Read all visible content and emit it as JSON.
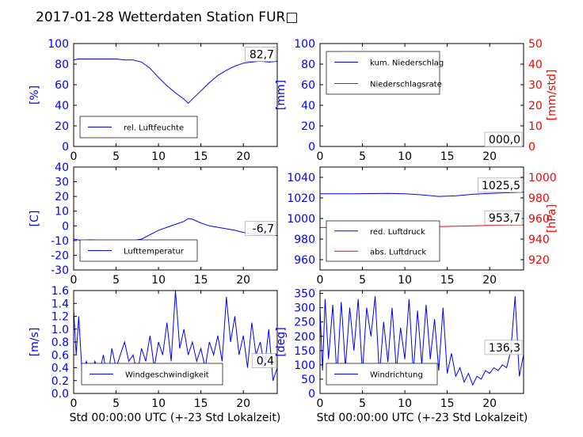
{
  "figure": {
    "title": "2017-01-28 Wetterdaten Station FUR□",
    "x_label": "Std 00:00:00 UTC (+-23 Std Lokalzeit)"
  },
  "colors": {
    "left": "#0000ff",
    "right": "#ff0000",
    "black": "#000000"
  },
  "chart_data": [
    {
      "type": "line",
      "name": "humidity",
      "xlim": [
        0,
        24
      ],
      "x_ticks": [
        0,
        5,
        10,
        15,
        20
      ],
      "ylim": [
        0,
        100
      ],
      "y_ticks": [
        0,
        20,
        40,
        60,
        80,
        100
      ],
      "ylabel": "[%]",
      "end_value": "82,7",
      "legend": {
        "position": "lower-left",
        "entries": [
          "rel. Luftfeuchte"
        ]
      },
      "series": [
        {
          "name": "rel. Luftfeuchte",
          "color": "#0000ff",
          "points": [
            [
              0,
              84
            ],
            [
              0.5,
              85
            ],
            [
              1,
              85
            ],
            [
              2,
              85
            ],
            [
              3,
              85
            ],
            [
              4,
              85
            ],
            [
              5,
              85
            ],
            [
              6,
              84
            ],
            [
              7,
              84
            ],
            [
              8,
              82
            ],
            [
              9,
              76
            ],
            [
              10,
              67
            ],
            [
              11,
              59
            ],
            [
              12,
              52
            ],
            [
              13,
              46
            ],
            [
              13.5,
              42
            ],
            [
              14,
              46
            ],
            [
              15,
              54
            ],
            [
              16,
              62
            ],
            [
              17,
              69
            ],
            [
              18,
              74
            ],
            [
              19,
              78
            ],
            [
              20,
              81
            ],
            [
              21,
              82
            ],
            [
              22,
              83
            ],
            [
              23,
              82
            ],
            [
              24,
              82.7
            ]
          ]
        }
      ]
    },
    {
      "type": "line",
      "name": "precipitation",
      "xlim": [
        0,
        24
      ],
      "x_ticks": [
        0,
        5,
        10,
        15,
        20
      ],
      "ylim": [
        0,
        100
      ],
      "y_ticks": [
        0,
        20,
        40,
        60,
        80,
        100
      ],
      "ylabel": "[mm]",
      "y2lim": [
        0,
        50
      ],
      "y2_ticks": [
        0,
        10,
        20,
        30,
        40,
        50
      ],
      "y2label": "[mm/std]",
      "end_value": "000,0",
      "legend": {
        "position": "upper-left",
        "entries": [
          "kum. Niederschlag",
          "Niederschlagsrate"
        ]
      },
      "series": [
        {
          "name": "kum. Niederschlag",
          "color": "#0000ff",
          "axis": "left",
          "points": [
            [
              0,
              0
            ],
            [
              24,
              0
            ]
          ]
        },
        {
          "name": "Niederschlagsrate",
          "color": "#ff0000",
          "axis": "right",
          "points": [
            [
              0,
              0
            ],
            [
              24,
              0
            ]
          ]
        }
      ]
    },
    {
      "type": "line",
      "name": "temperature",
      "xlim": [
        0,
        24
      ],
      "x_ticks": [
        0,
        5,
        10,
        15,
        20
      ],
      "ylim": [
        -30,
        40
      ],
      "y_ticks": [
        -30,
        -20,
        -10,
        0,
        10,
        20,
        30,
        40
      ],
      "ylabel": "[C]",
      "end_value": "-6,7",
      "legend": {
        "position": "lower-left",
        "entries": [
          "Lufttemperatur"
        ]
      },
      "series": [
        {
          "name": "Lufttemperatur",
          "color": "#0000ff",
          "points": [
            [
              0,
              -9
            ],
            [
              1,
              -10
            ],
            [
              2,
              -9.5
            ],
            [
              3,
              -10
            ],
            [
              4,
              -10.5
            ],
            [
              5,
              -10.5
            ],
            [
              6,
              -11
            ],
            [
              7,
              -10
            ],
            [
              8,
              -9
            ],
            [
              9,
              -6
            ],
            [
              10,
              -3
            ],
            [
              11,
              -1
            ],
            [
              12,
              1
            ],
            [
              13,
              3
            ],
            [
              13.5,
              5
            ],
            [
              14,
              4.5
            ],
            [
              15,
              2
            ],
            [
              16,
              0
            ],
            [
              17,
              -1
            ],
            [
              18,
              -2
            ],
            [
              19,
              -3
            ],
            [
              20,
              -4.5
            ],
            [
              21,
              -5.5
            ],
            [
              22,
              -6
            ],
            [
              23,
              -6
            ],
            [
              24,
              -6.7
            ]
          ]
        }
      ]
    },
    {
      "type": "line",
      "name": "pressure",
      "xlim": [
        0,
        24
      ],
      "x_ticks": [
        0,
        5,
        10,
        15,
        20
      ],
      "ylim": [
        950,
        1050
      ],
      "y_ticks": [
        960,
        980,
        1000,
        1020,
        1040
      ],
      "y2lim": [
        910,
        1010
      ],
      "y2_ticks": [
        920,
        940,
        960,
        980,
        1000
      ],
      "y2label": "[hPa]",
      "end_values": [
        "1025,5",
        "953,7"
      ],
      "legend": {
        "position": "lower-left",
        "entries": [
          "red. Luftdruck",
          "abs. Luftdruck"
        ]
      },
      "series": [
        {
          "name": "red. Luftdruck",
          "color": "#0000ff",
          "axis": "left",
          "points": [
            [
              0,
              1024
            ],
            [
              4,
              1024
            ],
            [
              8,
              1024.5
            ],
            [
              10,
              1024
            ],
            [
              12,
              1023
            ],
            [
              14,
              1021.5
            ],
            [
              16,
              1022
            ],
            [
              18,
              1023.5
            ],
            [
              20,
              1024.5
            ],
            [
              22,
              1025
            ],
            [
              24,
              1025.5
            ]
          ]
        },
        {
          "name": "abs. Luftdruck",
          "color": "#ff0000",
          "axis": "right",
          "points": [
            [
              0,
              951.2
            ],
            [
              4,
              951.2
            ],
            [
              8,
              951.6
            ],
            [
              10,
              951.5
            ],
            [
              12,
              951.8
            ],
            [
              14,
              952.1
            ],
            [
              16,
              952.5
            ],
            [
              18,
              952.9
            ],
            [
              20,
              953.2
            ],
            [
              22,
              953.5
            ],
            [
              24,
              953.7
            ]
          ]
        }
      ]
    },
    {
      "type": "line",
      "name": "wind-speed",
      "xlim": [
        0,
        24
      ],
      "x_ticks": [
        0,
        5,
        10,
        15,
        20
      ],
      "ylim": [
        0,
        1.6
      ],
      "y_ticks": [
        0.0,
        0.2,
        0.4,
        0.6,
        0.8,
        1.0,
        1.2,
        1.4,
        1.6
      ],
      "ylabel": "[m/s]",
      "end_value": "0,4",
      "legend": {
        "position": "lower-center",
        "entries": [
          "Windgeschwindigkeit"
        ]
      },
      "series": [
        {
          "name": "Windgeschwindigkeit",
          "color": "#0000ff",
          "points": [
            [
              0,
              1.3
            ],
            [
              0.3,
              0.6
            ],
            [
              0.6,
              1.2
            ],
            [
              1,
              0.3
            ],
            [
              1.5,
              0.5
            ],
            [
              2,
              0.2
            ],
            [
              2.5,
              0.5
            ],
            [
              3,
              0.3
            ],
            [
              3.5,
              0.6
            ],
            [
              4,
              0.2
            ],
            [
              4.5,
              0.7
            ],
            [
              5,
              0.4
            ],
            [
              5.5,
              0.6
            ],
            [
              6,
              0.8
            ],
            [
              6.5,
              0.5
            ],
            [
              7,
              0.6
            ],
            [
              7.5,
              0.3
            ],
            [
              8,
              0.7
            ],
            [
              8.5,
              0.5
            ],
            [
              9,
              0.9
            ],
            [
              9.5,
              0.4
            ],
            [
              10,
              0.8
            ],
            [
              10.5,
              0.6
            ],
            [
              11,
              1.1
            ],
            [
              11.5,
              0.5
            ],
            [
              12,
              1.6
            ],
            [
              12.5,
              0.7
            ],
            [
              13,
              1.0
            ],
            [
              13.5,
              0.6
            ],
            [
              14,
              0.8
            ],
            [
              14.5,
              0.5
            ],
            [
              15,
              0.7
            ],
            [
              15.5,
              0.4
            ],
            [
              16,
              0.8
            ],
            [
              16.5,
              0.6
            ],
            [
              17,
              0.9
            ],
            [
              17.5,
              0.5
            ],
            [
              18,
              1.5
            ],
            [
              18.5,
              0.8
            ],
            [
              19,
              1.2
            ],
            [
              19.5,
              0.6
            ],
            [
              20,
              0.9
            ],
            [
              20.5,
              0.4
            ],
            [
              21,
              1.1
            ],
            [
              21.5,
              0.6
            ],
            [
              22,
              0.8
            ],
            [
              22.5,
              0.4
            ],
            [
              23,
              1.0
            ],
            [
              23.5,
              0.2
            ],
            [
              24,
              0.4
            ]
          ]
        }
      ]
    },
    {
      "type": "line",
      "name": "wind-direction",
      "xlim": [
        0,
        24
      ],
      "x_ticks": [
        0,
        5,
        10,
        15,
        20
      ],
      "ylim": [
        0,
        360
      ],
      "y_ticks": [
        0,
        50,
        100,
        150,
        200,
        250,
        300,
        350
      ],
      "ylabel": "[deg]",
      "end_value": "136,3",
      "legend": {
        "position": "lower-center",
        "entries": [
          "Windrichtung"
        ]
      },
      "series": [
        {
          "name": "Windrichtung",
          "color": "#0000ff",
          "points": [
            [
              0,
              300
            ],
            [
              0.3,
              80
            ],
            [
              0.6,
              330
            ],
            [
              1,
              120
            ],
            [
              1.5,
              310
            ],
            [
              2,
              60
            ],
            [
              2.5,
              320
            ],
            [
              3,
              90
            ],
            [
              3.5,
              300
            ],
            [
              4,
              150
            ],
            [
              4.5,
              330
            ],
            [
              5,
              70
            ],
            [
              5.5,
              300
            ],
            [
              6,
              200
            ],
            [
              6.5,
              340
            ],
            [
              7,
              60
            ],
            [
              7.5,
              250
            ],
            [
              8,
              110
            ],
            [
              8.5,
              300
            ],
            [
              9,
              80
            ],
            [
              9.5,
              230
            ],
            [
              10,
              120
            ],
            [
              10.5,
              330
            ],
            [
              11,
              70
            ],
            [
              11.5,
              290
            ],
            [
              12,
              100
            ],
            [
              12.5,
              310
            ],
            [
              13,
              120
            ],
            [
              13.5,
              260
            ],
            [
              14,
              80
            ],
            [
              14.5,
              300
            ],
            [
              15,
              70
            ],
            [
              15.5,
              140
            ],
            [
              16,
              60
            ],
            [
              16.5,
              90
            ],
            [
              17,
              40
            ],
            [
              17.5,
              70
            ],
            [
              18,
              30
            ],
            [
              18.5,
              60
            ],
            [
              19,
              50
            ],
            [
              19.5,
              80
            ],
            [
              20,
              70
            ],
            [
              20.5,
              90
            ],
            [
              21,
              80
            ],
            [
              21.5,
              100
            ],
            [
              22,
              90
            ],
            [
              22.5,
              150
            ],
            [
              23,
              340
            ],
            [
              23.5,
              60
            ],
            [
              24,
              136
            ]
          ]
        }
      ]
    }
  ]
}
